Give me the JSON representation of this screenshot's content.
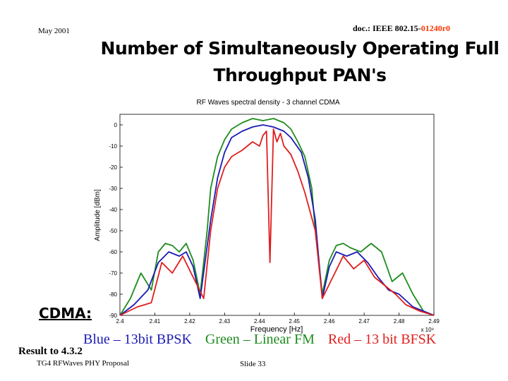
{
  "header": {
    "date": "May 2001",
    "doc_prefix": "doc.: IEEE 802.15-",
    "doc_rev": "01240r0"
  },
  "title": {
    "line1": "Number of Simultaneously Operating Full",
    "line2": "Throughput PAN's"
  },
  "cdma_label": "CDMA:",
  "legend": {
    "blue": "Blue – 13bit BPSK",
    "green": "Green – Linear FM",
    "red": "Red – 13 bit BFSK"
  },
  "result": "Result to 4.3.2",
  "footer": {
    "left": "TG4 RFWaves PHY Proposal",
    "slide": "Slide 33"
  },
  "colors": {
    "blue": "#1a1ab4",
    "green": "#1e8c1e",
    "red": "#e01e1e",
    "doc_rev": "#ff3300"
  },
  "chart_data": {
    "type": "line",
    "title": "RF Waves spectral density - 3 channel CDMA",
    "xlabel": "Frequency [Hz]",
    "ylabel": "Amplitude [dBm]",
    "x_multiplier": "x 10⁹",
    "xlim": [
      2.4,
      2.49
    ],
    "ylim": [
      -90,
      5
    ],
    "x_ticks": [
      "2.4",
      "2.41",
      "2.42",
      "2.43",
      "2.44",
      "2.45",
      "2.46",
      "2.47",
      "2.48",
      "2.49"
    ],
    "y_ticks": [
      "0",
      "-10",
      "-20",
      "-30",
      "-40",
      "-50",
      "-60",
      "-70",
      "-80",
      "-90"
    ],
    "grid": false,
    "series": [
      {
        "name": "Green – Linear FM",
        "color": "green",
        "x": [
          2.4,
          2.403,
          2.406,
          2.409,
          2.411,
          2.413,
          2.415,
          2.417,
          2.419,
          2.421,
          2.423,
          2.425,
          2.426,
          2.428,
          2.43,
          2.432,
          2.435,
          2.438,
          2.441,
          2.444,
          2.447,
          2.449,
          2.451,
          2.453,
          2.455,
          2.456,
          2.458,
          2.46,
          2.462,
          2.464,
          2.466,
          2.469,
          2.472,
          2.475,
          2.478,
          2.481,
          2.484,
          2.487,
          2.49
        ],
        "y": [
          -90,
          -82,
          -70,
          -78,
          -60,
          -56,
          -57,
          -60,
          -56,
          -64,
          -80,
          -50,
          -30,
          -15,
          -7,
          -2,
          1,
          3,
          2,
          3,
          1,
          -2,
          -8,
          -15,
          -30,
          -50,
          -80,
          -64,
          -57,
          -56,
          -58,
          -60,
          -56,
          -60,
          -74,
          -70,
          -80,
          -88,
          -90
        ]
      },
      {
        "name": "Blue – 13bit BPSK",
        "color": "blue",
        "x": [
          2.4,
          2.404,
          2.408,
          2.411,
          2.414,
          2.417,
          2.419,
          2.421,
          2.423,
          2.426,
          2.428,
          2.43,
          2.432,
          2.435,
          2.438,
          2.441,
          2.444,
          2.447,
          2.449,
          2.452,
          2.454,
          2.456,
          2.458,
          2.46,
          2.462,
          2.465,
          2.468,
          2.471,
          2.474,
          2.477,
          2.48,
          2.484,
          2.487,
          2.49
        ],
        "y": [
          -90,
          -85,
          -78,
          -65,
          -60,
          -62,
          -60,
          -67,
          -82,
          -45,
          -25,
          -13,
          -6,
          -3,
          -1,
          0,
          -1,
          -3,
          -6,
          -13,
          -25,
          -45,
          -82,
          -67,
          -60,
          -62,
          -60,
          -65,
          -72,
          -78,
          -80,
          -86,
          -88,
          -90
        ]
      },
      {
        "name": "Red – 13 bit BFSK",
        "color": "red",
        "x": [
          2.4,
          2.405,
          2.409,
          2.412,
          2.415,
          2.418,
          2.421,
          2.424,
          2.426,
          2.428,
          2.43,
          2.432,
          2.435,
          2.438,
          2.44,
          2.441,
          2.442,
          2.443,
          2.444,
          2.445,
          2.446,
          2.447,
          2.449,
          2.451,
          2.453,
          2.456,
          2.458,
          2.461,
          2.464,
          2.467,
          2.47,
          2.473,
          2.476,
          2.479,
          2.482,
          2.486,
          2.49
        ],
        "y": [
          -90,
          -86,
          -84,
          -65,
          -70,
          -62,
          -72,
          -82,
          -50,
          -30,
          -20,
          -15,
          -12,
          -8,
          -10,
          -5,
          -3,
          -65,
          -2,
          -8,
          -4,
          -10,
          -14,
          -22,
          -32,
          -50,
          -82,
          -72,
          -62,
          -68,
          -64,
          -72,
          -76,
          -80,
          -85,
          -88,
          -90
        ]
      }
    ]
  }
}
